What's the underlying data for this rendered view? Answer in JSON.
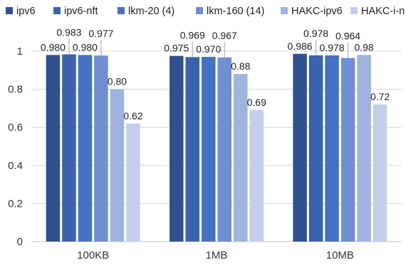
{
  "chart_data": {
    "type": "bar",
    "categories": [
      "100KB",
      "1MB",
      "10MB"
    ],
    "series": [
      {
        "name": "ipv6",
        "color": "#2f528f",
        "values": [
          0.98,
          0.975,
          0.986
        ],
        "labels": [
          "0.980",
          "0.975",
          "0.986"
        ]
      },
      {
        "name": "ipv6-nft",
        "color": "#3a62ad",
        "values": [
          0.983,
          0.969,
          0.978
        ],
        "labels": [
          "0.983",
          "0.969",
          "0.978"
        ]
      },
      {
        "name": "lkm-20 (4)",
        "color": "#4472c4",
        "values": [
          0.98,
          0.97,
          0.978
        ],
        "labels": [
          "0.980",
          "0.970",
          "0.978"
        ]
      },
      {
        "name": "lkm-160 (14)",
        "color": "#6f8fd2",
        "values": [
          0.977,
          0.967,
          0.964
        ],
        "labels": [
          "0.977",
          "0.967",
          "0.964"
        ]
      },
      {
        "name": "HAKC-ipv6",
        "color": "#9fb3df",
        "values": [
          0.8,
          0.88,
          0.98
        ],
        "labels": [
          "0.80",
          "0.88",
          "0.98"
        ]
      },
      {
        "name": "HAKC-i-n",
        "color": "#c3cfea",
        "values": [
          0.62,
          0.69,
          0.72
        ],
        "labels": [
          "0.62",
          "0.69",
          "0.72"
        ]
      }
    ],
    "ylim": [
      0,
      1
    ],
    "yticks": [
      {
        "value": 0,
        "label": "0"
      },
      {
        "value": 0.2,
        "label": "0.2"
      },
      {
        "value": 0.4,
        "label": "0.4"
      },
      {
        "value": 0.6,
        "label": "0.6"
      },
      {
        "value": 0.8,
        "label": "0.8"
      },
      {
        "value": 1,
        "label": "1"
      }
    ],
    "grid": true,
    "legend_position": "top",
    "title": "",
    "xlabel": "",
    "ylabel": ""
  }
}
